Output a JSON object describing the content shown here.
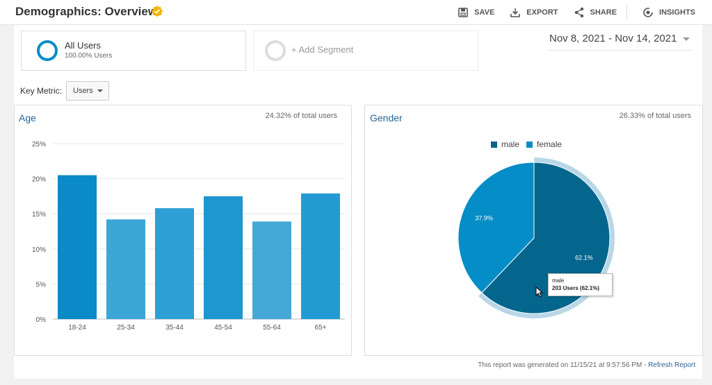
{
  "header": {
    "title": "Demographics: Overview",
    "actions": [
      {
        "label": "SAVE",
        "icon": "save-icon"
      },
      {
        "label": "EXPORT",
        "icon": "export-icon"
      },
      {
        "label": "SHARE",
        "icon": "share-icon"
      },
      {
        "label": "INSIGHTS",
        "icon": "insights-icon"
      }
    ]
  },
  "segments": {
    "active": {
      "name": "All Users",
      "percent": "100.00% Users"
    },
    "add_label": "+ Add Segment"
  },
  "date_range": "Nov 8, 2021 - Nov 14, 2021",
  "key_metric": {
    "label": "Key Metric:",
    "value": "Users"
  },
  "age_panel": {
    "title": "Age",
    "share": "24.32% of total users"
  },
  "gender_panel": {
    "title": "Gender",
    "share": "26.33% of total users"
  },
  "tooltip": {
    "series": "male",
    "value": "203 Users (62.1%)"
  },
  "footer": {
    "text": "This report was generated on 11/15/21 at 9:57:56 PM - ",
    "link": "Refresh Report"
  },
  "colors": {
    "accent": "#058dc7",
    "male": "#05668d",
    "female": "#058dc7",
    "link": "#2a6496"
  },
  "chart_data": [
    {
      "type": "bar",
      "title": "Age",
      "categories": [
        "18-24",
        "25-34",
        "35-44",
        "45-54",
        "55-64",
        "65+"
      ],
      "values": [
        20.5,
        14.2,
        15.8,
        17.5,
        13.9,
        17.9
      ],
      "ylim": [
        0,
        25
      ],
      "yticks": [
        "0%",
        "5%",
        "10%",
        "15%",
        "20%",
        "25%"
      ],
      "grid": true
    },
    {
      "type": "pie",
      "title": "Gender",
      "categories": [
        "male",
        "female"
      ],
      "values": [
        62.1,
        37.9
      ],
      "labels": [
        "62.1%",
        "37.9%"
      ],
      "legend": "top"
    }
  ]
}
